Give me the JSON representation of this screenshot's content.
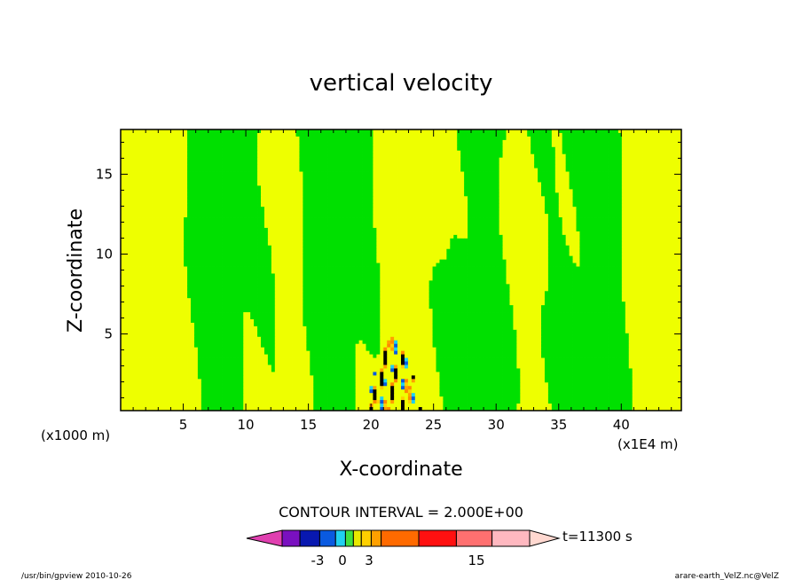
{
  "chart_data": {
    "type": "heatmap",
    "title": "vertical velocity",
    "xlabel": "X-coordinate",
    "ylabel": "Z-coordinate",
    "x_unit_label": "(x1E4 m)",
    "y_unit_label": "(x1000 m)",
    "xlim": [
      0,
      44.8
    ],
    "ylim": [
      0.2,
      17.8
    ],
    "x_ticks": [
      5,
      10,
      15,
      20,
      25,
      30,
      35,
      40
    ],
    "y_ticks": [
      5,
      10,
      15
    ],
    "contour_interval_text": "CONTOUR INTERVAL = 2.000E+00",
    "contour_interval": 2.0,
    "time_label": "t=11300 s",
    "colorbar": {
      "levels": [
        -9,
        -7,
        -5,
        -3,
        -2,
        -1,
        0,
        1,
        2,
        3,
        5,
        9,
        11,
        15
      ],
      "colors": [
        "#e040b0",
        "#7a10c0",
        "#0818b0",
        "#0a5ae0",
        "#20d0f0",
        "#40e040",
        "#e8e800",
        "#ffd000",
        "#ffa000",
        "#ff6a00",
        "#ff1010",
        "#ff7070",
        "#ffb8c0",
        "#ffd8d0"
      ],
      "tick_labels": [
        "-3",
        "0",
        "3",
        "15"
      ]
    },
    "dominant_colors": {
      "positive": "#eeff00",
      "negative": "#00e000",
      "strong": "#000000"
    }
  },
  "footer": {
    "left": "/usr/bin/gpview   2010-10-26",
    "right": "arare-earth_VelZ.nc@VelZ"
  }
}
